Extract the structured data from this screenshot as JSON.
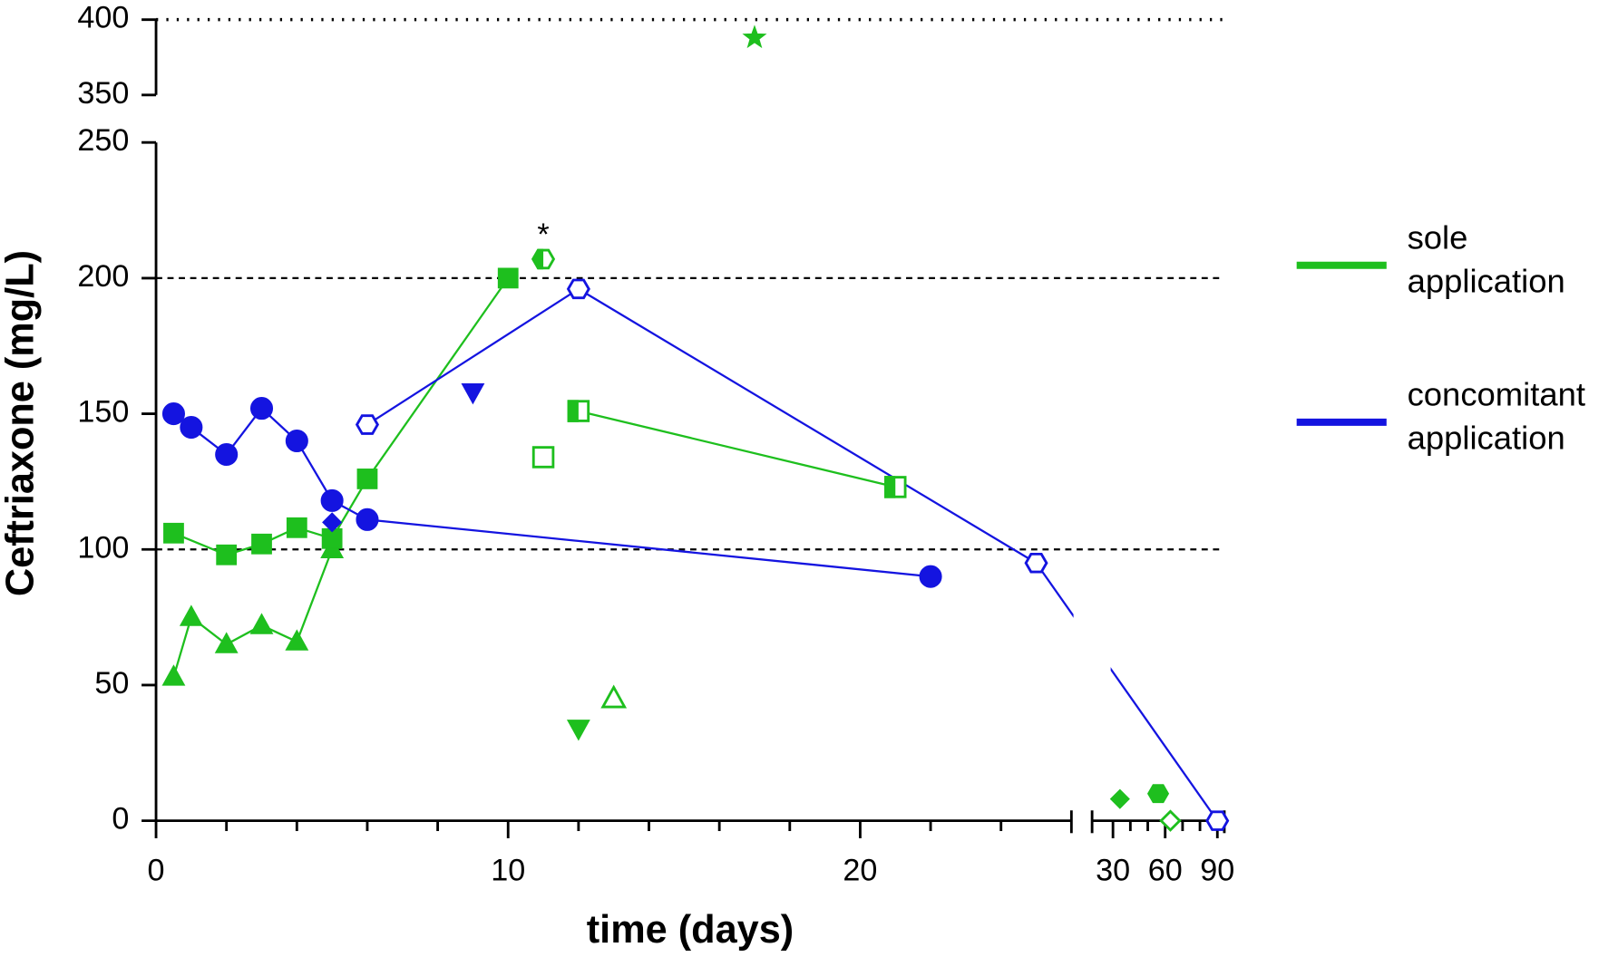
{
  "chart_data": {
    "type": "scatter",
    "xlabel": "time (days)",
    "ylabel": "Ceftriaxone (mg/L)",
    "xsegments": [
      {
        "xlim": [
          0,
          26
        ],
        "xticks": [
          0,
          10,
          20
        ],
        "xminorticks": [
          2,
          4,
          6,
          8,
          12,
          14,
          16,
          18,
          22,
          24
        ]
      },
      {
        "xlim": [
          18,
          94
        ],
        "xticks": [
          30,
          60,
          90
        ],
        "xminorticks": [
          40,
          50,
          70,
          80
        ]
      }
    ],
    "ysegments": [
      {
        "ylim": [
          0,
          250
        ],
        "yticks": [
          0,
          50,
          100,
          150,
          200,
          250
        ]
      },
      {
        "ylim": [
          350,
          400
        ],
        "yticks": [
          350,
          400
        ]
      }
    ],
    "reference_lines": [
      {
        "y": 100,
        "style": "dashed"
      },
      {
        "y": 200,
        "style": "dashed"
      },
      {
        "y": 400,
        "style": "dotted"
      }
    ],
    "legend": [
      {
        "name": "sole application",
        "color": "#1ebf1e"
      },
      {
        "name": "concomitant application",
        "color": "#1414e0"
      }
    ],
    "annotations": [
      {
        "text": "*",
        "x": 11,
        "y": 207
      }
    ],
    "series": [
      {
        "color": "#1ebf1e",
        "marker": "triangle",
        "fill": "filled",
        "line": true,
        "x": [
          0.5,
          1,
          2,
          3,
          4,
          5
        ],
        "values": [
          53,
          75,
          65,
          72,
          66,
          100
        ]
      },
      {
        "color": "#1ebf1e",
        "marker": "square",
        "fill": "filled",
        "line": true,
        "x": [
          0.5,
          2,
          3,
          4,
          5,
          6,
          10
        ],
        "values": [
          106,
          98,
          102,
          108,
          104,
          126,
          200
        ]
      },
      {
        "color": "#1ebf1e",
        "marker": "hexagon",
        "fill": "half",
        "line": false,
        "x": [
          11
        ],
        "values": [
          207
        ]
      },
      {
        "color": "#1ebf1e",
        "marker": "square",
        "fill": "half",
        "line": true,
        "x": [
          12,
          21
        ],
        "values": [
          151,
          123
        ]
      },
      {
        "color": "#1ebf1e",
        "marker": "square",
        "fill": "open",
        "line": false,
        "x": [
          11
        ],
        "values": [
          134
        ]
      },
      {
        "color": "#1ebf1e",
        "marker": "triangle-down",
        "fill": "filled",
        "line": false,
        "x": [
          12
        ],
        "values": [
          34
        ]
      },
      {
        "color": "#1ebf1e",
        "marker": "triangle",
        "fill": "open",
        "line": false,
        "x": [
          13
        ],
        "values": [
          45
        ]
      },
      {
        "color": "#1ebf1e",
        "marker": "star",
        "fill": "filled",
        "line": false,
        "x": [
          17
        ],
        "values": [
          388
        ]
      },
      {
        "color": "#1ebf1e",
        "marker": "diamond",
        "fill": "filled",
        "line": false,
        "x": [
          34
        ],
        "values": [
          8
        ]
      },
      {
        "color": "#1ebf1e",
        "marker": "hexagon",
        "fill": "filled",
        "line": false,
        "x": [
          56
        ],
        "values": [
          10
        ]
      },
      {
        "color": "#1ebf1e",
        "marker": "diamond",
        "fill": "open",
        "line": false,
        "x": [
          63
        ],
        "values": [
          0
        ]
      },
      {
        "color": "#1414e0",
        "marker": "circle",
        "fill": "filled",
        "line": true,
        "x": [
          0.5,
          1,
          2,
          3,
          4,
          5,
          6,
          22
        ],
        "values": [
          150,
          145,
          135,
          152,
          140,
          118,
          111,
          90
        ]
      },
      {
        "color": "#1414e0",
        "marker": "triangle-down",
        "fill": "filled",
        "line": false,
        "x": [
          9
        ],
        "values": [
          158
        ]
      },
      {
        "color": "#1414e0",
        "marker": "diamond",
        "fill": "filled",
        "line": false,
        "x": [
          5
        ],
        "values": [
          110
        ]
      },
      {
        "color": "#1414e0",
        "marker": "hexagon",
        "fill": "open",
        "line": true,
        "x": [
          6,
          12,
          25,
          90
        ],
        "values": [
          146,
          196,
          95,
          0
        ]
      }
    ]
  }
}
